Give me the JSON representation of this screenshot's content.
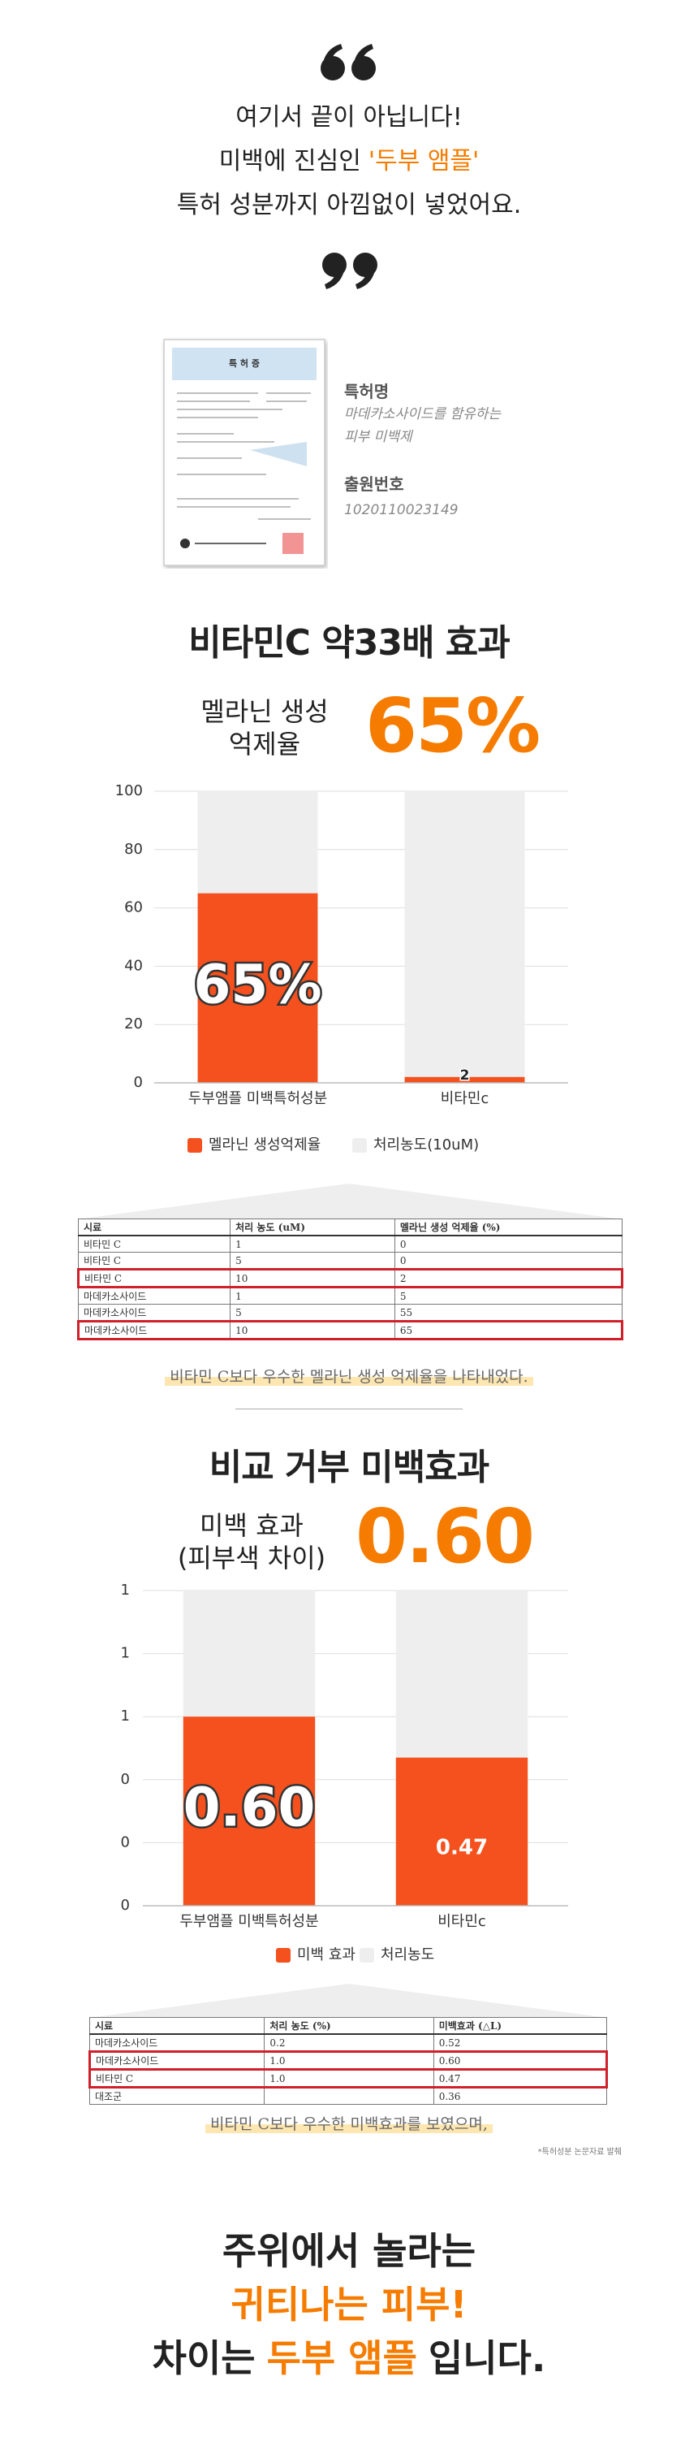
{
  "intro": {
    "line1": "여기서 끝이 아닙니다!",
    "line2": "미백에 진심인",
    "line2_highlight": "'두부 앰플'",
    "line3": "특허 성분까지 아낌없이 넣었어요."
  },
  "patent": {
    "certificate_title": "특 허 증",
    "name_label": "특허명",
    "name_lines": [
      "마데카소사이드를 함유하는",
      "피부 미백제"
    ],
    "number_label": "출원번호",
    "number": "1020110023149"
  },
  "section1": {
    "heading": "비타민C 약33배 효과",
    "metric_label_lines": [
      "멜라닌 생성",
      "억제율"
    ],
    "metric_value": "65%",
    "table": {
      "header": [
        "시료",
        "처리 농도 (uM)",
        "멜라닌 생성 억제율 (%)"
      ],
      "rows": [
        [
          "비타민 C",
          "1",
          "0"
        ],
        [
          "비타민 C",
          "5",
          "0"
        ],
        [
          "비타민 C",
          "10",
          "2"
        ],
        [
          "마데카소사이드",
          "1",
          "5"
        ],
        [
          "마데카소사이드",
          "5",
          "55"
        ],
        [
          "마데카소사이드",
          "10",
          "65"
        ]
      ],
      "highlight_rows": [
        2,
        5
      ]
    },
    "caption": "비타민 C보다 우수한 멜라닌 생성 억제율을 나타내었다."
  },
  "section2": {
    "heading": "비교 거부 미백효과",
    "metric_label_lines": [
      "미백 효과",
      "(피부색 차이)"
    ],
    "metric_value": "0.60",
    "table": {
      "header": [
        "시료",
        "처리 농도 (%)",
        "미백효과 (△L)"
      ],
      "rows": [
        [
          "마데카소사이드",
          "0.2",
          "0.52"
        ],
        [
          "마데카소사이드",
          "1.0",
          "0.60"
        ],
        [
          "비타민 C",
          "1.0",
          "0.47"
        ],
        [
          "대조군",
          null,
          "0.36"
        ]
      ],
      "highlight_rows": [
        1,
        2
      ]
    },
    "caption": "비타민 C보다 우수한 미백효과를 보였으며,",
    "footnote": "*특허성분 논문자료 발췌"
  },
  "ending": {
    "line1": "주위에서 놀라는",
    "line2": "귀티나는 피부!",
    "line3_parts": [
      "차이는",
      "두부 앰플",
      "입니다."
    ]
  },
  "chart_data": [
    {
      "type": "bar",
      "categories": [
        "두부앰플 미백특허성분",
        "비타민c"
      ],
      "series": [
        {
          "name": "멜라닌 생성억제율",
          "color": "#f4511e",
          "values": [
            65,
            2
          ],
          "value_labels": [
            "65%",
            "2"
          ]
        },
        {
          "name": "처리농도(10uM)",
          "color": "#eeeeee",
          "values": [
            100,
            100
          ]
        }
      ],
      "ylim": [
        0,
        100
      ],
      "yticks": [
        0,
        20,
        40,
        60,
        80,
        100
      ],
      "grid": true
    },
    {
      "type": "bar",
      "categories": [
        "두부앰플 미백특허성분",
        "비타민c"
      ],
      "series": [
        {
          "name": "미백 효과",
          "color": "#f4511e",
          "values": [
            0.6,
            0.47
          ],
          "value_labels": [
            "0.60",
            "0.47"
          ]
        },
        {
          "name": "처리농도",
          "color": "#eeeeee",
          "values": [
            1.0,
            1.0
          ]
        }
      ],
      "ylim": [
        0,
        1.0
      ],
      "yticks": [
        {
          "value": 0,
          "label": "0"
        },
        {
          "value": 0.2,
          "label": "0"
        },
        {
          "value": 0.4,
          "label": "0"
        },
        {
          "value": 0.6,
          "label": "1"
        },
        {
          "value": 0.8,
          "label": "1"
        },
        {
          "value": 1.0,
          "label": "1"
        }
      ],
      "grid": true
    }
  ]
}
